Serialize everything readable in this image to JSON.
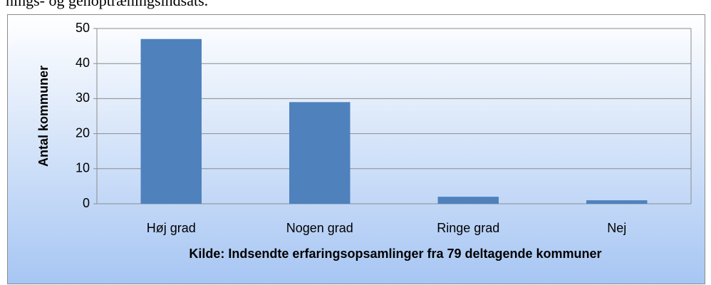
{
  "header": {
    "text": "nings- og genoptræningsindsats."
  },
  "chart_data": {
    "type": "bar",
    "categories": [
      "Høj grad",
      "Nogen grad",
      "Ringe grad",
      "Nej"
    ],
    "values": [
      47,
      29,
      2,
      1
    ],
    "color": "#4f81bd",
    "ylabel": "Antal kommuner",
    "xlabel": "Kilde: Indsendte erfaringsopsamlinger fra 79 deltagende kommuner",
    "ylim": [
      0,
      50
    ],
    "yticks": [
      0,
      10,
      20,
      30,
      40,
      50
    ],
    "grid": true
  }
}
